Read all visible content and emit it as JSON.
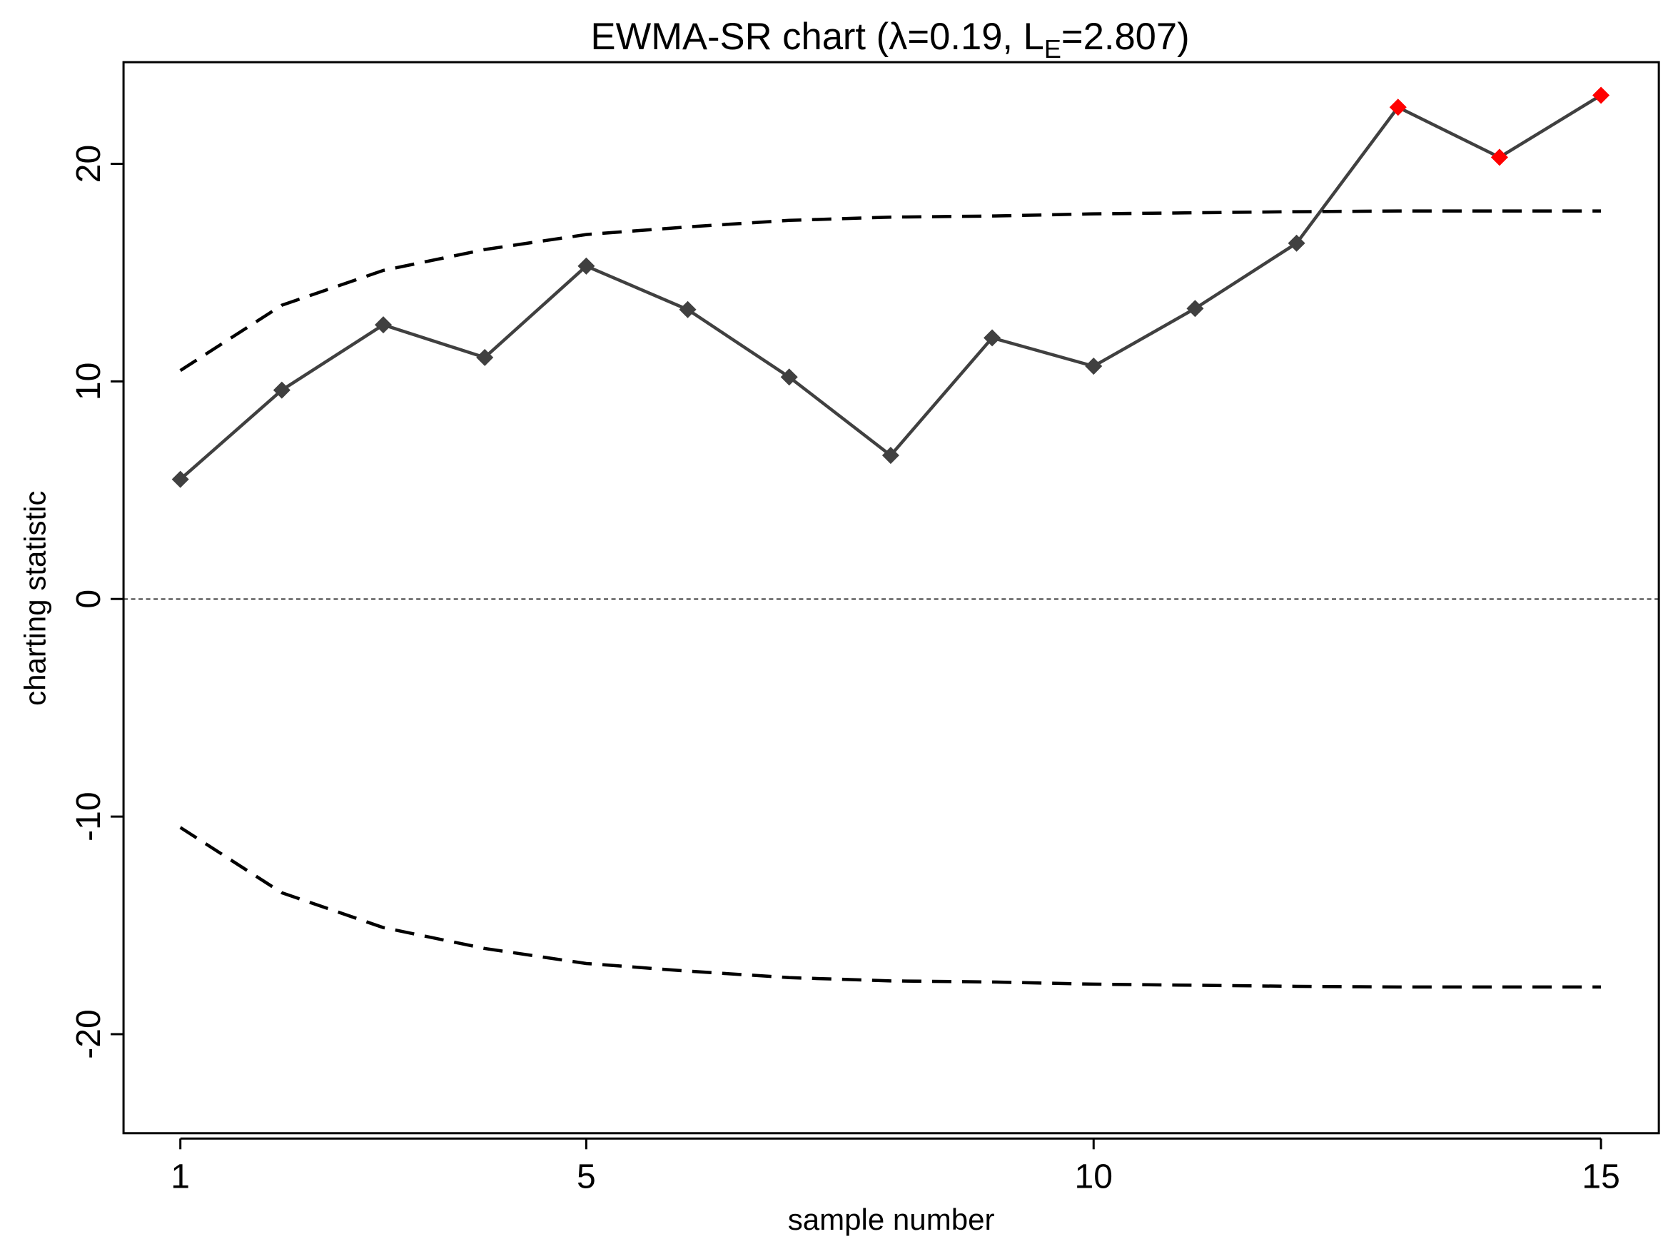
{
  "chart_data": {
    "type": "line",
    "title_parts": [
      "EWMA-SR chart (λ=0.19, L",
      "E",
      "=2.807)"
    ],
    "x_label": "sample number",
    "y_label": "charting statistic",
    "x": [
      1,
      2,
      3,
      4,
      5,
      6,
      7,
      8,
      9,
      10,
      11,
      12,
      13,
      14,
      15
    ],
    "series": [
      {
        "role": "statistic",
        "color": "#404040",
        "marker": "diamond",
        "point_colors": [
          "#404040",
          "#404040",
          "#404040",
          "#404040",
          "#404040",
          "#404040",
          "#404040",
          "#404040",
          "#404040",
          "#404040",
          "#404040",
          "#404040",
          "#ff0000",
          "#ff0000",
          "#ff0000"
        ],
        "values": [
          5.5,
          9.6,
          12.6,
          11.1,
          15.3,
          13.3,
          10.2,
          6.6,
          12.0,
          10.7,
          13.35,
          16.35,
          22.6,
          20.3,
          23.15
        ]
      },
      {
        "role": "upper-limit",
        "color": "#000000",
        "dashed": true,
        "values": [
          10.5,
          13.5,
          15.1,
          16.06,
          16.75,
          17.1,
          17.4,
          17.55,
          17.6,
          17.7,
          17.75,
          17.8,
          17.83,
          17.83,
          17.83
        ]
      },
      {
        "role": "lower-limit",
        "color": "#000000",
        "dashed": true,
        "values": [
          -10.5,
          -13.5,
          -15.1,
          -16.06,
          -16.75,
          -17.1,
          -17.4,
          -17.55,
          -17.6,
          -17.7,
          -17.75,
          -17.8,
          -17.83,
          -17.83,
          -17.83
        ]
      }
    ],
    "hline": 0,
    "xlim": [
      0.44,
      15.57
    ],
    "xticks": [
      1,
      5,
      10,
      15
    ],
    "ylim": [
      -24.55,
      24.67
    ],
    "yticks": [
      -20,
      -10,
      0,
      10,
      20
    ]
  }
}
